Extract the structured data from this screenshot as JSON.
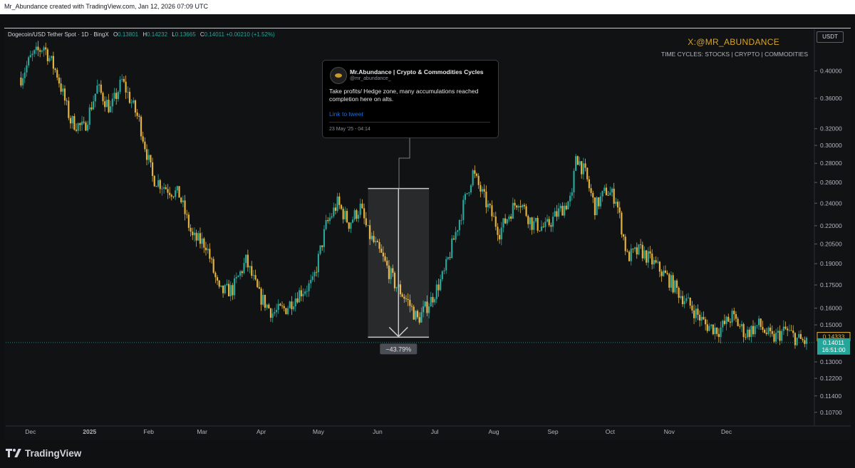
{
  "header": {
    "title": "Mr_Abundance created with TradingView.com, Jan 12, 2026 07:09 UTC"
  },
  "legend": {
    "symbol": "Dogecoin/USD Tether Spot · 1D · BingX",
    "o_label": "O",
    "o": "0.13801",
    "h_label": "H",
    "h": "0.14232",
    "l_label": "L",
    "l": "0.13665",
    "c_label": "C",
    "c": "0.14011",
    "change": "+0.00210 (+1.52%)"
  },
  "branding": {
    "handle": "X:@MR_ABUNDANCE",
    "subtitle": "TIME CYCLES: STOCKS | CRYPTO | COMMODITIES"
  },
  "currency_button": "USDT",
  "tweet": {
    "name": "Mr.Abundance | Crypto & Commodities Cycles",
    "handle": "@mr_abundance_",
    "text": "Take profits/ Hedge zone, many accumulations reached completion here on alts.",
    "link": "Link to tweet",
    "date": "23 May '25 - 04:14"
  },
  "measure": {
    "label": "−43.79%",
    "from": 0.254,
    "to": 0.143
  },
  "price_labels": {
    "previous": "0.14333",
    "last": "0.14011",
    "countdown": "16:51:00"
  },
  "colors": {
    "up": "#26a69a",
    "down": "#e3b23c",
    "background": "#111214",
    "brand": "#d9a520",
    "last_price": "#26a69a",
    "prev_price": "#e3b23c"
  },
  "footer": {
    "logo": "TradingView"
  },
  "chart_data": {
    "type": "candlestick",
    "scale": "log",
    "title": "Dogecoin/USD Tether Spot · 1D · BingX",
    "y_ticks": [
      0.4,
      0.36,
      0.32,
      0.3,
      0.28,
      0.26,
      0.24,
      0.22,
      0.205,
      0.19,
      0.175,
      0.16,
      0.15,
      0.13,
      0.122,
      0.114,
      0.107
    ],
    "x_ticks": [
      "Dec",
      "2025",
      "Feb",
      "Mar",
      "Apr",
      "May",
      "Jun",
      "Jul",
      "Aug",
      "Sep",
      "Oct",
      "Nov",
      "Dec"
    ],
    "ylim": [
      0.1015,
      0.47
    ],
    "series": [
      {
        "x": [
          "2024-11-26",
          "2024-12-01",
          "2024-12-08",
          "2024-12-15",
          "2024-12-22",
          "2024-12-29",
          "2025-01-05",
          "2025-01-12",
          "2025-01-18",
          "2025-01-22",
          "2025-01-27",
          "2025-02-03",
          "2025-02-10",
          "2025-02-17",
          "2025-02-24",
          "2025-03-03",
          "2025-03-10",
          "2025-03-17",
          "2025-03-24",
          "2025-03-31",
          "2025-04-07",
          "2025-04-14",
          "2025-04-21",
          "2025-04-28",
          "2025-05-05",
          "2025-05-11",
          "2025-05-17",
          "2025-05-23",
          "2025-05-27",
          "2025-06-03",
          "2025-06-10",
          "2025-06-17",
          "2025-06-22",
          "2025-06-29",
          "2025-07-06",
          "2025-07-13",
          "2025-07-21",
          "2025-07-28",
          "2025-08-04",
          "2025-08-11",
          "2025-08-14",
          "2025-08-21",
          "2025-08-28",
          "2025-09-04",
          "2025-09-11",
          "2025-09-13",
          "2025-09-18",
          "2025-09-23",
          "2025-09-29",
          "2025-10-04",
          "2025-10-10",
          "2025-10-17",
          "2025-10-24",
          "2025-10-31",
          "2025-11-06",
          "2025-11-13",
          "2025-11-20",
          "2025-11-27",
          "2025-12-04",
          "2025-12-11",
          "2025-12-18",
          "2025-12-25",
          "2026-01-01",
          "2026-01-07",
          "2026-01-12"
        ],
        "close": [
          0.39,
          0.42,
          0.44,
          0.395,
          0.33,
          0.32,
          0.375,
          0.345,
          0.385,
          0.36,
          0.33,
          0.265,
          0.255,
          0.248,
          0.21,
          0.205,
          0.17,
          0.172,
          0.192,
          0.168,
          0.157,
          0.16,
          0.17,
          0.176,
          0.22,
          0.24,
          0.222,
          0.236,
          0.214,
          0.196,
          0.176,
          0.164,
          0.153,
          0.165,
          0.183,
          0.22,
          0.27,
          0.24,
          0.215,
          0.236,
          0.244,
          0.222,
          0.218,
          0.232,
          0.245,
          0.29,
          0.268,
          0.236,
          0.252,
          0.245,
          0.195,
          0.2,
          0.19,
          0.18,
          0.17,
          0.16,
          0.15,
          0.147,
          0.155,
          0.145,
          0.15,
          0.142,
          0.147,
          0.142,
          0.14011
        ]
      }
    ]
  }
}
